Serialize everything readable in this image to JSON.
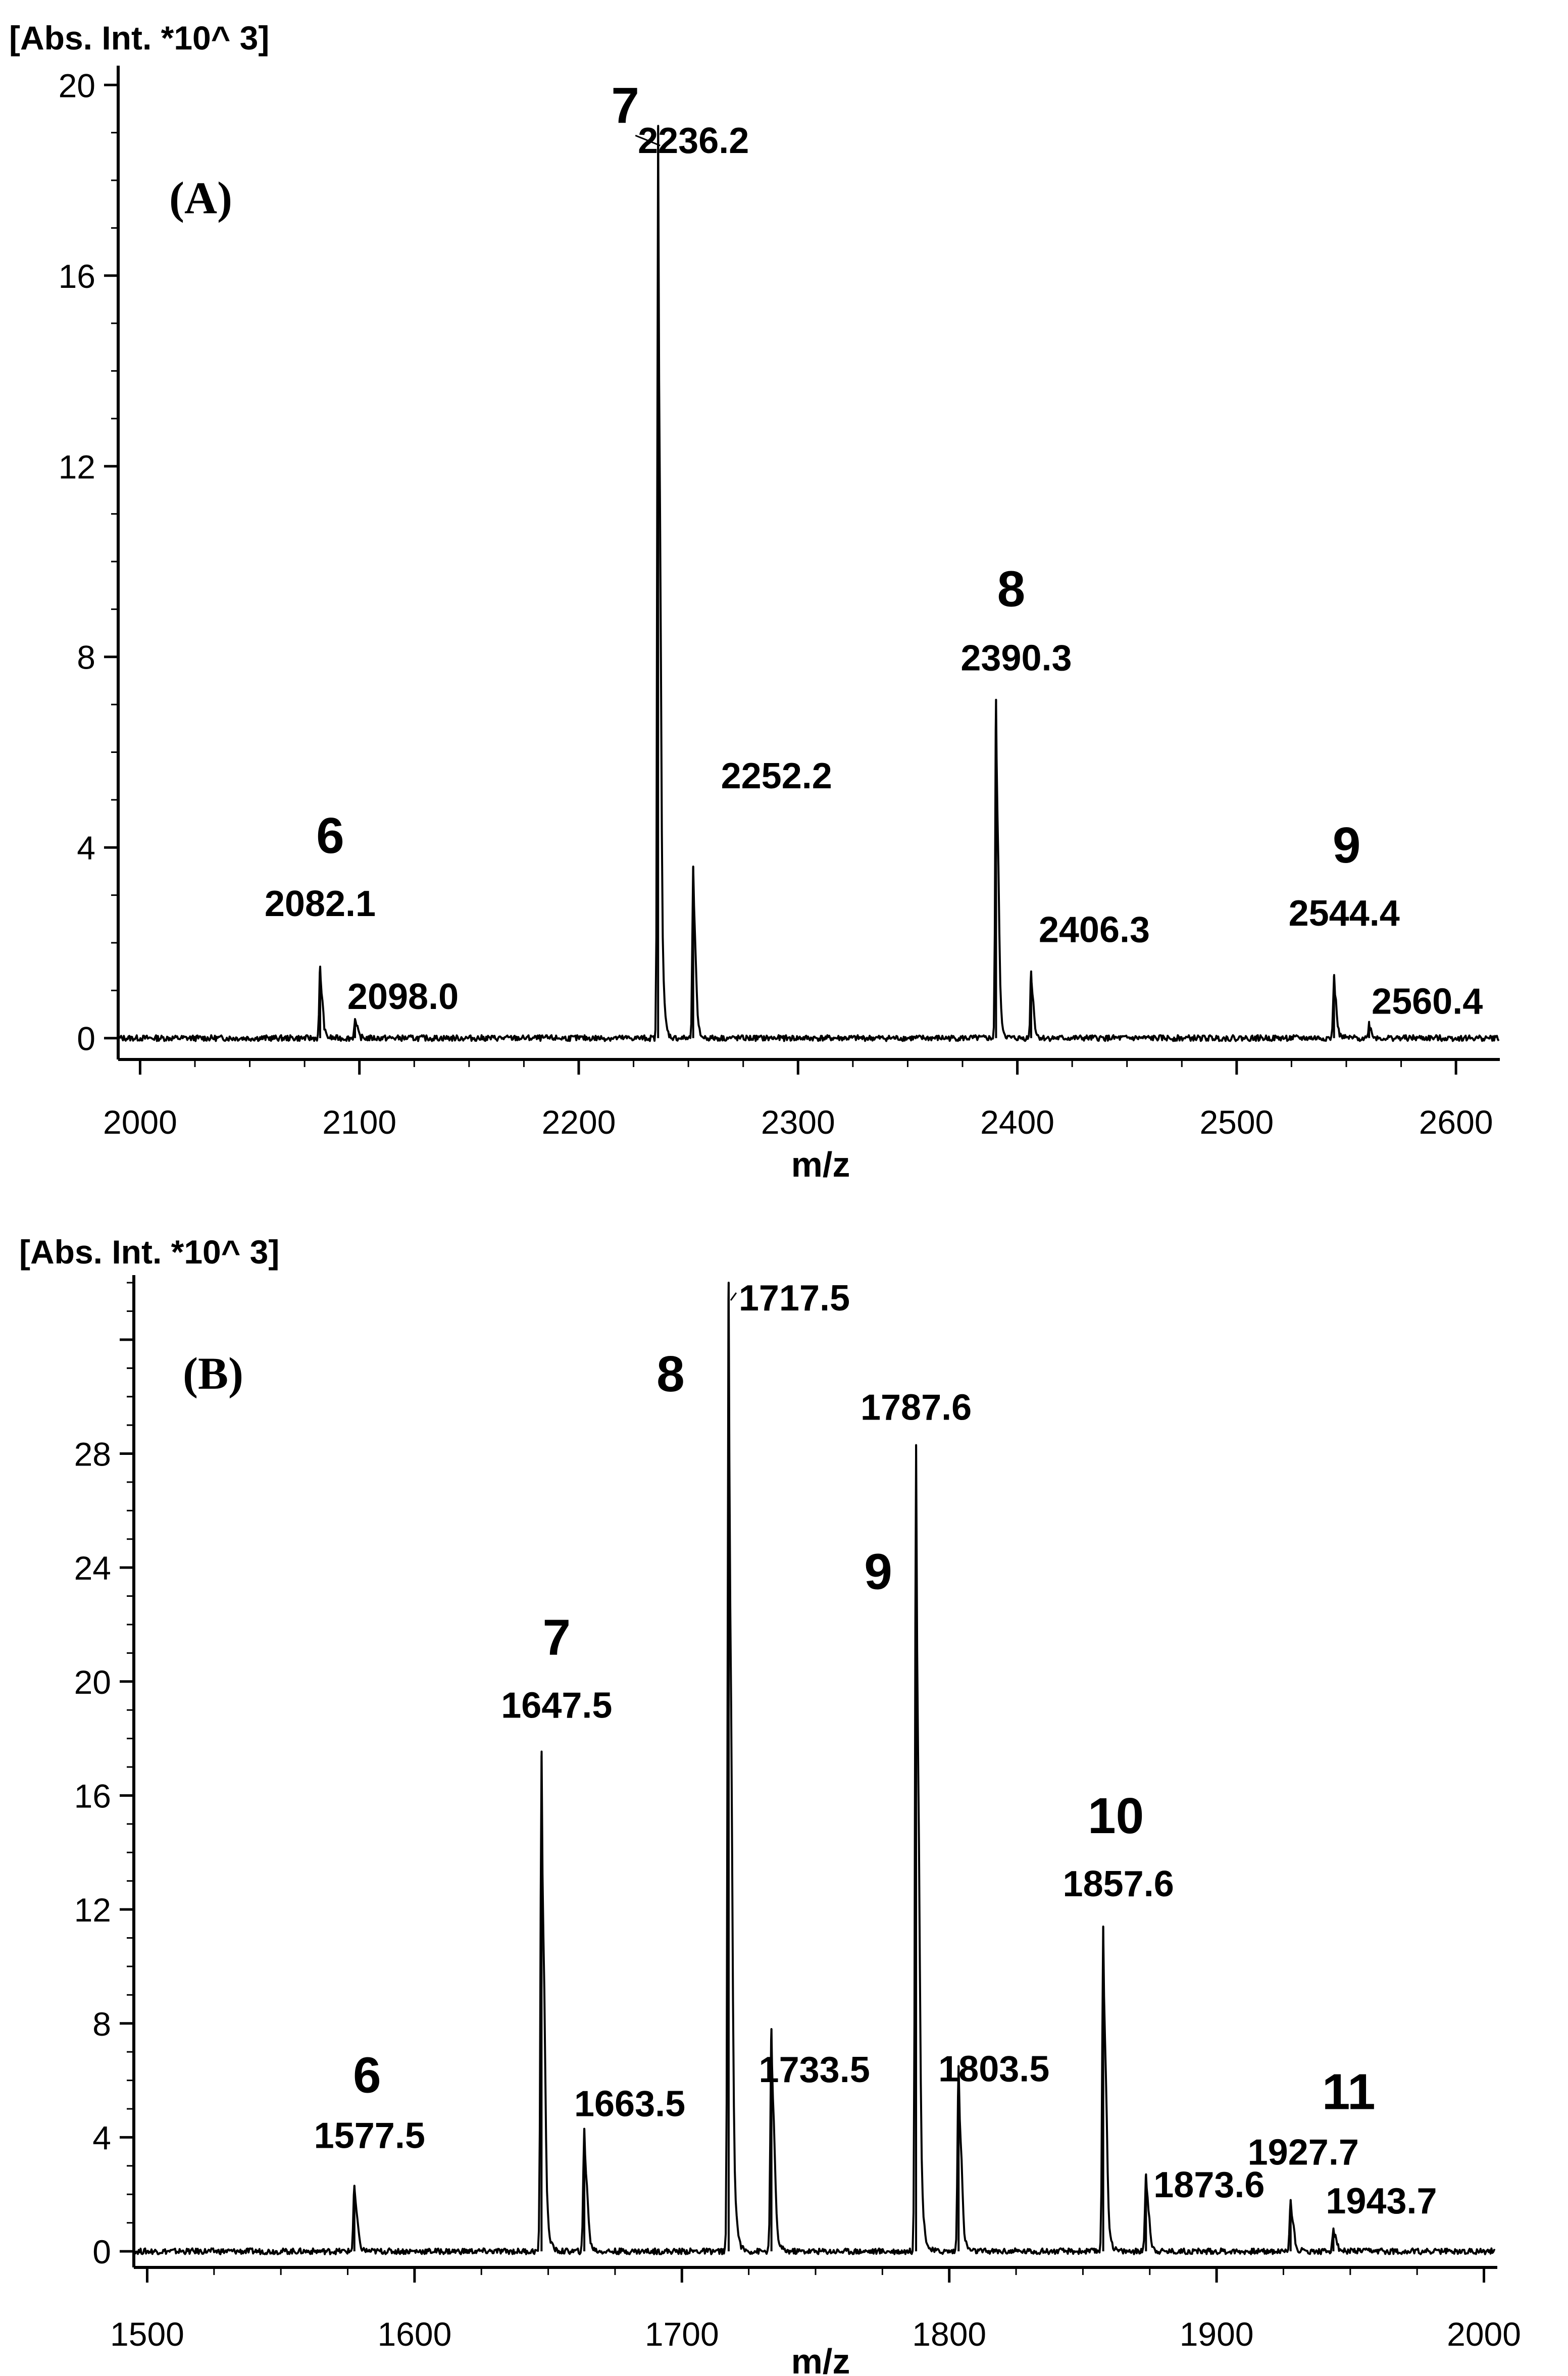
{
  "chart_data": [
    {
      "type": "line",
      "panel_label": "(A)",
      "ylabel": "[Abs. Int. *10^ 3]",
      "xlabel": "m/z",
      "xlim": [
        1990,
        2620
      ],
      "ylim": [
        -0.3,
        20.3
      ],
      "xticks": [
        "2000",
        "2100",
        "2200",
        "2300",
        "2400",
        "2500",
        "2600"
      ],
      "yticks": [
        "0",
        "4",
        "8",
        "12",
        "16",
        "20"
      ],
      "peaks": [
        {
          "mz": 2082.1,
          "intensity": 1.5,
          "label": "2082.1",
          "number": "6"
        },
        {
          "mz": 2098.0,
          "intensity": 0.4,
          "label": "2098.0",
          "number": ""
        },
        {
          "mz": 2236.2,
          "intensity": 19.1,
          "label": "2236.2",
          "number": "7"
        },
        {
          "mz": 2252.2,
          "intensity": 3.6,
          "label": "2252.2",
          "number": ""
        },
        {
          "mz": 2390.3,
          "intensity": 7.1,
          "label": "2390.3",
          "number": "8"
        },
        {
          "mz": 2406.3,
          "intensity": 1.4,
          "label": "2406.3",
          "number": ""
        },
        {
          "mz": 2544.4,
          "intensity": 1.3,
          "label": "2544.4",
          "number": "9"
        },
        {
          "mz": 2560.4,
          "intensity": 0.3,
          "label": "2560.4",
          "number": ""
        }
      ]
    },
    {
      "type": "line",
      "panel_label": "(B)",
      "ylabel": "[Abs. Int. *10^ 3]",
      "xlabel": "m/z",
      "xlim": [
        1495,
        2005
      ],
      "ylim": [
        -0.3,
        34.0
      ],
      "xticks": [
        "1500",
        "1600",
        "1700",
        "1800",
        "1900",
        "2000"
      ],
      "yticks": [
        "0",
        "4",
        "8",
        "12",
        "16",
        "20",
        "24",
        "28"
      ],
      "peaks": [
        {
          "mz": 1577.5,
          "intensity": 2.3,
          "label": "1577.5",
          "number": "6"
        },
        {
          "mz": 1647.5,
          "intensity": 17.4,
          "label": "1647.5",
          "number": "7"
        },
        {
          "mz": 1663.5,
          "intensity": 4.3,
          "label": "1663.5",
          "number": ""
        },
        {
          "mz": 1717.5,
          "intensity": 34.0,
          "label": "1717.5",
          "number": "8"
        },
        {
          "mz": 1733.5,
          "intensity": 7.8,
          "label": "1733.5",
          "number": ""
        },
        {
          "mz": 1787.6,
          "intensity": 28.3,
          "label": "1787.6",
          "number": "9"
        },
        {
          "mz": 1803.5,
          "intensity": 6.5,
          "label": "1803.5",
          "number": ""
        },
        {
          "mz": 1857.6,
          "intensity": 11.4,
          "label": "1857.6",
          "number": "10"
        },
        {
          "mz": 1873.6,
          "intensity": 2.7,
          "label": "1873.6",
          "number": ""
        },
        {
          "mz": 1927.7,
          "intensity": 1.8,
          "label": "1927.7",
          "number": "11"
        },
        {
          "mz": 1943.7,
          "intensity": 0.8,
          "label": "1943.7",
          "number": ""
        }
      ]
    }
  ]
}
